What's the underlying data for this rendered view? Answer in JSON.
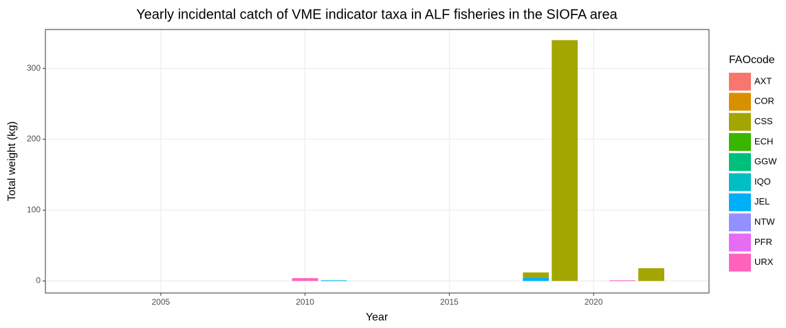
{
  "chart_data": {
    "type": "stacked-bar",
    "title": "Yearly incidental catch of VME indicator taxa in ALF fisheries in the SIOFA area",
    "x_label": "Year",
    "y_label": "Total weight (kg)",
    "legend_title": "FAOcode",
    "x": [
      2010,
      2011,
      2018,
      2019,
      2021,
      2022
    ],
    "series": [
      {
        "name": "AXT",
        "color": "#F8766D",
        "values": [
          null,
          null,
          null,
          null,
          null,
          null
        ]
      },
      {
        "name": "COR",
        "color": "#D89000",
        "values": [
          null,
          null,
          null,
          null,
          null,
          null
        ]
      },
      {
        "name": "CSS",
        "color": "#A3A500",
        "values": [
          null,
          null,
          7,
          340,
          null,
          18
        ]
      },
      {
        "name": "ECH",
        "color": "#39B600",
        "values": [
          null,
          null,
          null,
          null,
          null,
          null
        ]
      },
      {
        "name": "GGW",
        "color": "#00BF7D",
        "values": [
          null,
          null,
          null,
          null,
          null,
          null
        ]
      },
      {
        "name": "IQO",
        "color": "#00BFC4",
        "values": [
          null,
          null,
          null,
          null,
          null,
          null
        ]
      },
      {
        "name": "JEL",
        "color": "#00B0F6",
        "values": [
          null,
          1,
          5,
          null,
          null,
          null
        ]
      },
      {
        "name": "NTW",
        "color": "#9590FF",
        "values": [
          null,
          null,
          null,
          null,
          null,
          null
        ]
      },
      {
        "name": "PFR",
        "color": "#E76BF3",
        "values": [
          null,
          null,
          null,
          null,
          null,
          null
        ]
      },
      {
        "name": "URX",
        "color": "#FF62BC",
        "values": [
          4,
          null,
          null,
          null,
          1,
          null
        ]
      }
    ],
    "xlim": [
      2001,
      2024
    ],
    "xticks": [
      2005,
      2010,
      2015,
      2020
    ],
    "ylim": [
      -17,
      355
    ],
    "yticks": [
      0,
      100,
      200,
      300
    ],
    "grid": true,
    "legend": "right"
  }
}
